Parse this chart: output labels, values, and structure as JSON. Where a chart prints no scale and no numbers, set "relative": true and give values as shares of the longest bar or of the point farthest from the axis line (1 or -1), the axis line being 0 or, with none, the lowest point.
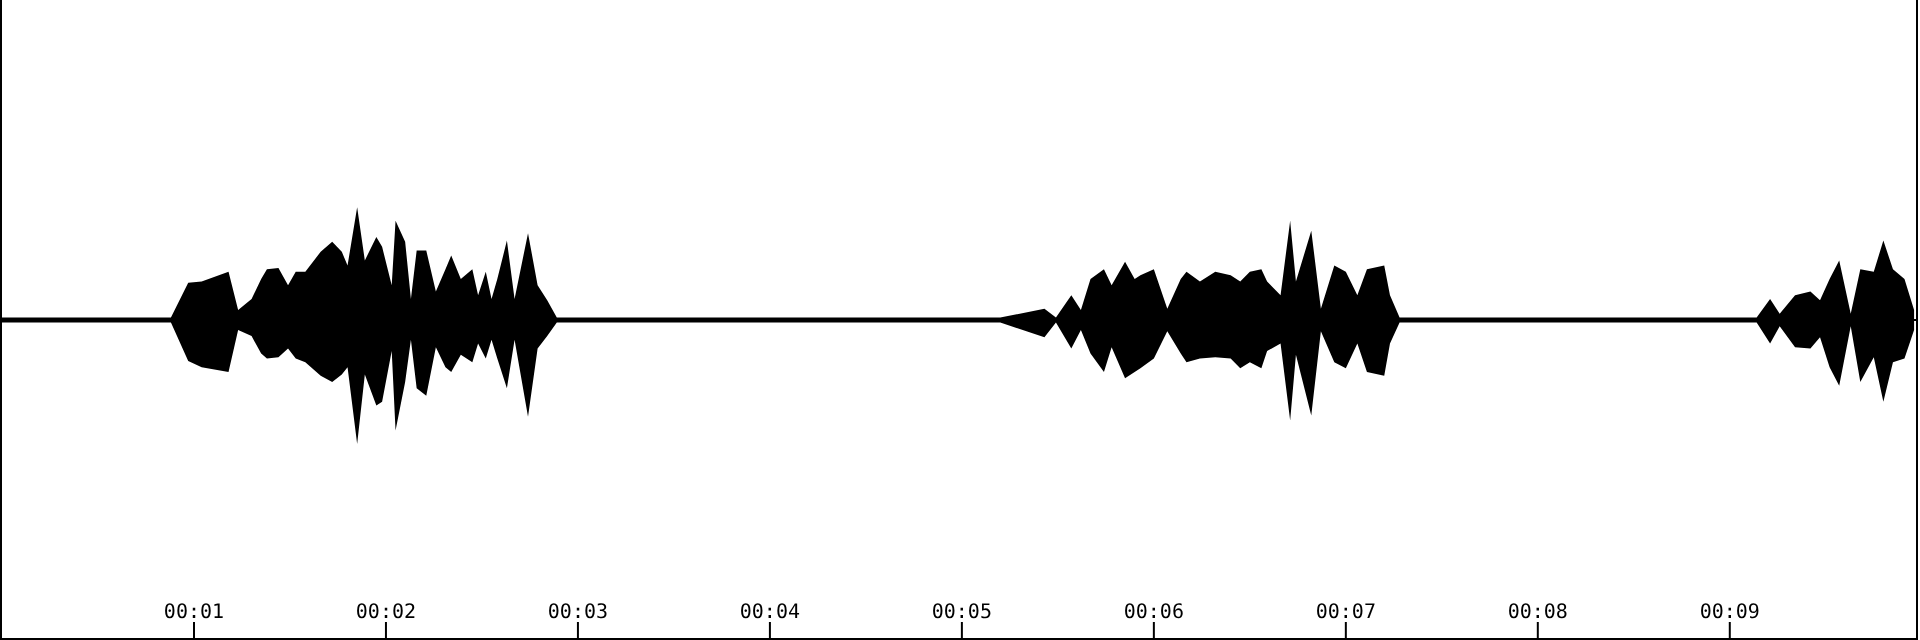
{
  "chart_data": {
    "type": "area",
    "relative": true,
    "x": [
      0,
      0.88,
      0.97,
      1.04,
      1.18,
      1.23,
      1.3,
      1.35,
      1.38,
      1.44,
      1.49,
      1.53,
      1.58,
      1.66,
      1.72,
      1.77,
      1.8,
      1.85,
      1.89,
      1.95,
      1.98,
      2.03,
      2.05,
      2.1,
      2.13,
      2.16,
      2.21,
      2.26,
      2.31,
      2.34,
      2.39,
      2.45,
      2.48,
      2.52,
      2.55,
      2.58,
      2.63,
      2.67,
      2.74,
      2.79,
      2.84,
      2.89,
      5.2,
      5.43,
      5.49,
      5.57,
      5.62,
      5.67,
      5.74,
      5.78,
      5.85,
      5.9,
      5.93,
      6.0,
      6.07,
      6.14,
      6.17,
      6.24,
      6.32,
      6.4,
      6.45,
      6.5,
      6.56,
      6.59,
      6.66,
      6.71,
      6.74,
      6.82,
      6.87,
      6.94,
      7.0,
      7.06,
      7.11,
      7.2,
      7.23,
      7.28,
      9.14,
      9.21,
      9.26,
      9.34,
      9.42,
      9.47,
      9.52,
      9.57,
      9.63,
      9.68,
      9.75,
      9.8,
      9.85,
      9.91,
      9.96
    ],
    "series": [
      {
        "color": "#000000",
        "values": [
          0.02,
          0.02,
          0.3,
          0.31,
          0.39,
          0.08,
          0.17,
          0.33,
          0.41,
          0.42,
          0.28,
          0.39,
          0.39,
          0.55,
          0.63,
          0.55,
          0.44,
          0.91,
          0.48,
          0.67,
          0.59,
          0.28,
          0.8,
          0.63,
          0.17,
          0.56,
          0.56,
          0.23,
          0.41,
          0.52,
          0.33,
          0.41,
          0.2,
          0.39,
          0.17,
          0.33,
          0.64,
          0.17,
          0.7,
          0.28,
          0.16,
          0.02,
          0.02,
          0.09,
          0.02,
          0.2,
          0.08,
          0.33,
          0.41,
          0.28,
          0.47,
          0.33,
          0.36,
          0.41,
          0.09,
          0.33,
          0.39,
          0.31,
          0.39,
          0.36,
          0.31,
          0.39,
          0.41,
          0.31,
          0.2,
          0.8,
          0.31,
          0.72,
          0.09,
          0.44,
          0.39,
          0.2,
          0.41,
          0.44,
          0.2,
          0.02,
          0.02,
          0.17,
          0.05,
          0.2,
          0.23,
          0.16,
          0.33,
          0.48,
          0.05,
          0.41,
          0.39,
          0.64,
          0.41,
          0.33,
          0.08
        ]
      },
      {
        "color": "#000000",
        "values": [
          -0.02,
          -0.02,
          -0.33,
          -0.38,
          -0.42,
          -0.08,
          -0.13,
          -0.27,
          -0.31,
          -0.3,
          -0.23,
          -0.31,
          -0.34,
          -0.45,
          -0.5,
          -0.44,
          -0.38,
          -1,
          -0.44,
          -0.69,
          -0.66,
          -0.25,
          -0.89,
          -0.5,
          -0.16,
          -0.55,
          -0.61,
          -0.22,
          -0.38,
          -0.42,
          -0.28,
          -0.34,
          -0.19,
          -0.31,
          -0.16,
          -0.31,
          -0.55,
          -0.16,
          -0.78,
          -0.23,
          -0.13,
          -0.02,
          -0.02,
          -0.14,
          -0.02,
          -0.23,
          -0.08,
          -0.27,
          -0.42,
          -0.22,
          -0.47,
          -0.42,
          -0.39,
          -0.31,
          -0.09,
          -0.27,
          -0.34,
          -0.31,
          -0.3,
          -0.31,
          -0.39,
          -0.34,
          -0.39,
          -0.25,
          -0.19,
          -0.81,
          -0.28,
          -0.77,
          -0.09,
          -0.34,
          -0.39,
          -0.19,
          -0.42,
          -0.45,
          -0.19,
          -0.02,
          -0.02,
          -0.19,
          -0.05,
          -0.22,
          -0.23,
          -0.14,
          -0.38,
          -0.53,
          -0.05,
          -0.5,
          -0.3,
          -0.66,
          -0.34,
          -0.31,
          -0.08
        ]
      }
    ],
    "xlim": [
      0,
      9.97
    ],
    "xticks": [
      {
        "value": 1,
        "label": "00:01"
      },
      {
        "value": 2,
        "label": "00:02"
      },
      {
        "value": 3,
        "label": "00:03"
      },
      {
        "value": 4,
        "label": "00:04"
      },
      {
        "value": 5,
        "label": "00:05"
      },
      {
        "value": 6,
        "label": "00:06"
      },
      {
        "value": 7,
        "label": "00:07"
      },
      {
        "value": 8,
        "label": "00:08"
      },
      {
        "value": 9,
        "label": "00:09"
      }
    ]
  }
}
